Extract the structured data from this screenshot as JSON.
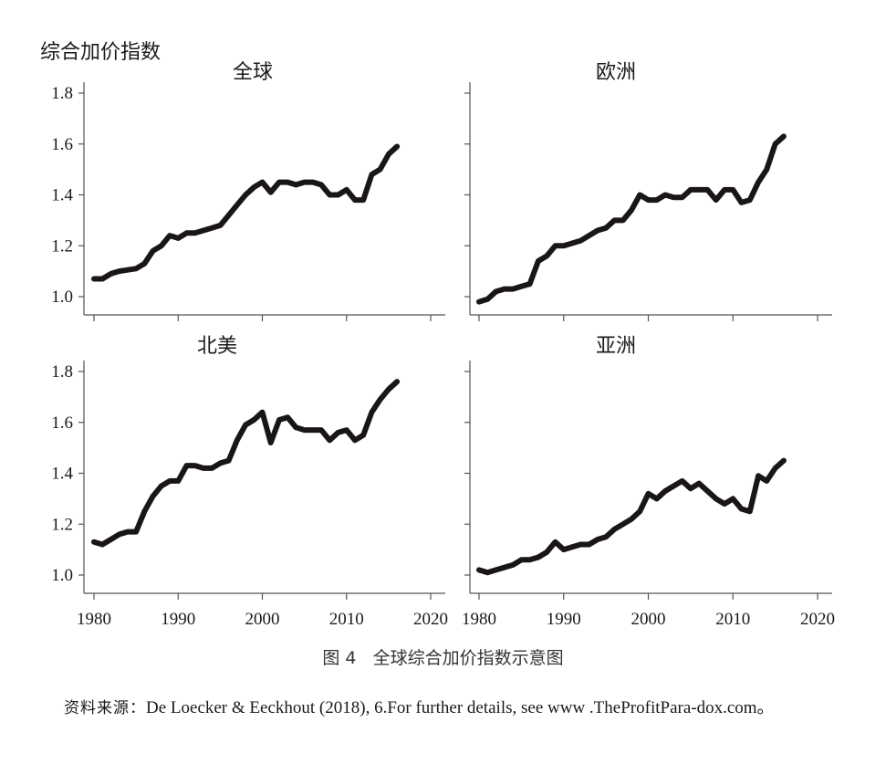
{
  "chart_data": {
    "type": "line",
    "ylabel": "综合加价指数",
    "panels": [
      {
        "title": "全球",
        "yticks": [
          "1.8",
          "1.6",
          "1.4",
          "1.2",
          "1.0"
        ],
        "xticks": [],
        "x": [
          1980,
          1981,
          1982,
          1983,
          1984,
          1985,
          1986,
          1987,
          1988,
          1989,
          1990,
          1991,
          1992,
          1993,
          1994,
          1995,
          1996,
          1997,
          1998,
          1999,
          2000,
          2001,
          2002,
          2003,
          2004,
          2005,
          2006,
          2007,
          2008,
          2009,
          2010,
          2011,
          2012,
          2013,
          2014,
          2015,
          2016
        ],
        "values": [
          1.07,
          1.07,
          1.09,
          1.1,
          1.105,
          1.11,
          1.13,
          1.18,
          1.2,
          1.24,
          1.23,
          1.25,
          1.25,
          1.26,
          1.27,
          1.28,
          1.32,
          1.36,
          1.4,
          1.43,
          1.45,
          1.41,
          1.45,
          1.45,
          1.44,
          1.45,
          1.45,
          1.44,
          1.4,
          1.4,
          1.42,
          1.38,
          1.38,
          1.48,
          1.5,
          1.56,
          1.59
        ]
      },
      {
        "title": "欧洲",
        "yticks": [],
        "xticks": [],
        "x": [
          1980,
          1981,
          1982,
          1983,
          1984,
          1985,
          1986,
          1987,
          1988,
          1989,
          1990,
          1991,
          1992,
          1993,
          1994,
          1995,
          1996,
          1997,
          1998,
          1999,
          2000,
          2001,
          2002,
          2003,
          2004,
          2005,
          2006,
          2007,
          2008,
          2009,
          2010,
          2011,
          2012,
          2013,
          2014,
          2015,
          2016
        ],
        "values": [
          0.98,
          0.99,
          1.02,
          1.03,
          1.03,
          1.04,
          1.05,
          1.14,
          1.16,
          1.2,
          1.2,
          1.21,
          1.22,
          1.24,
          1.26,
          1.27,
          1.3,
          1.3,
          1.34,
          1.4,
          1.38,
          1.38,
          1.4,
          1.39,
          1.39,
          1.42,
          1.42,
          1.42,
          1.38,
          1.42,
          1.42,
          1.37,
          1.38,
          1.45,
          1.5,
          1.6,
          1.63
        ]
      },
      {
        "title": "北美",
        "yticks": [
          "1.8",
          "1.6",
          "1.4",
          "1.2",
          "1.0"
        ],
        "xticks": [
          "1980",
          "1990",
          "2000",
          "2010",
          "2020"
        ],
        "x": [
          1980,
          1981,
          1982,
          1983,
          1984,
          1985,
          1986,
          1987,
          1988,
          1989,
          1990,
          1991,
          1992,
          1993,
          1994,
          1995,
          1996,
          1997,
          1998,
          1999,
          2000,
          2001,
          2002,
          2003,
          2004,
          2005,
          2006,
          2007,
          2008,
          2009,
          2010,
          2011,
          2012,
          2013,
          2014,
          2015,
          2016
        ],
        "values": [
          1.13,
          1.12,
          1.14,
          1.16,
          1.17,
          1.17,
          1.25,
          1.31,
          1.35,
          1.37,
          1.37,
          1.43,
          1.43,
          1.42,
          1.42,
          1.44,
          1.45,
          1.53,
          1.59,
          1.61,
          1.64,
          1.52,
          1.61,
          1.62,
          1.58,
          1.57,
          1.57,
          1.57,
          1.53,
          1.56,
          1.57,
          1.53,
          1.55,
          1.64,
          1.69,
          1.73,
          1.76
        ]
      },
      {
        "title": "亚洲",
        "yticks": [],
        "xticks": [
          "1980",
          "1990",
          "2000",
          "2010",
          "2020"
        ],
        "x": [
          1980,
          1981,
          1982,
          1983,
          1984,
          1985,
          1986,
          1987,
          1988,
          1989,
          1990,
          1991,
          1992,
          1993,
          1994,
          1995,
          1996,
          1997,
          1998,
          1999,
          2000,
          2001,
          2002,
          2003,
          2004,
          2005,
          2006,
          2007,
          2008,
          2009,
          2010,
          2011,
          2012,
          2013,
          2014,
          2015,
          2016
        ],
        "values": [
          1.02,
          1.01,
          1.02,
          1.03,
          1.04,
          1.06,
          1.06,
          1.07,
          1.09,
          1.13,
          1.1,
          1.11,
          1.12,
          1.12,
          1.14,
          1.15,
          1.18,
          1.2,
          1.22,
          1.25,
          1.32,
          1.3,
          1.33,
          1.35,
          1.37,
          1.34,
          1.36,
          1.33,
          1.3,
          1.28,
          1.3,
          1.26,
          1.25,
          1.39,
          1.37,
          1.42,
          1.45
        ]
      }
    ],
    "xlim": [
      1980,
      2020
    ],
    "ylim": [
      0.93,
      1.83
    ],
    "line_color": "#1a1616",
    "grid": false,
    "legend": "none"
  },
  "caption": {
    "number": "图 4",
    "text": "全球综合加价指数示意图"
  },
  "source": {
    "prefix": "资料来源：",
    "text": "De Loecker & Eeckhout (2018), 6.For further details, see www .TheProfitPara-dox.com。"
  }
}
